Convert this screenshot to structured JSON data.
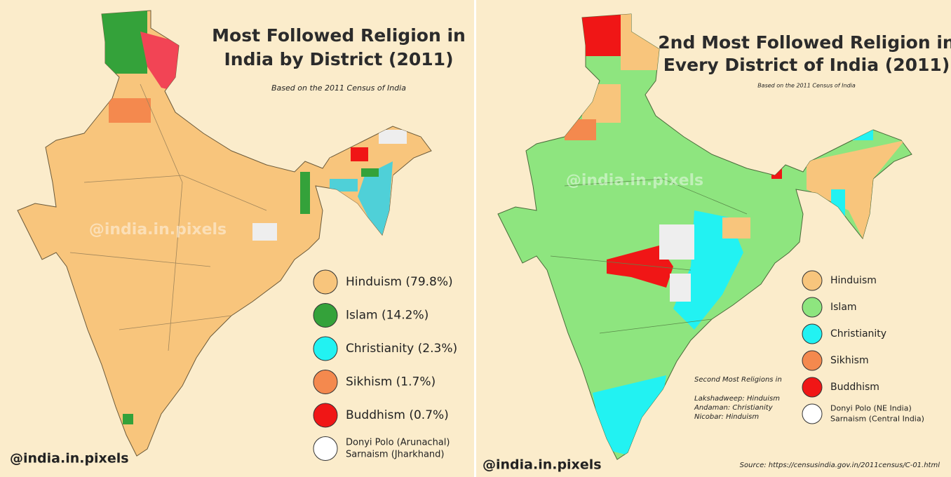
{
  "left_panel": {
    "title_lines": [
      "Most Followed Religion in",
      "India by District (2011)"
    ],
    "subtitle": "Based on the 2011 Census of India",
    "watermark": "@india.in.pixels",
    "credit": "@india.in.pixels",
    "legend": [
      {
        "lines": [
          "Hinduism (79.8%)"
        ],
        "color": "#f8c57c"
      },
      {
        "lines": [
          "Islam (14.2%)"
        ],
        "color": "#34a23a"
      },
      {
        "lines": [
          "Christianity (2.3%)"
        ],
        "color": "#22f2f2"
      },
      {
        "lines": [
          "Sikhism (1.7%)"
        ],
        "color": "#f4894e"
      },
      {
        "lines": [
          "Buddhism (0.7%)"
        ],
        "color": "#f01616"
      },
      {
        "lines": [
          "Donyi Polo (Arunachal)",
          "Sarnaism (Jharkhand)"
        ],
        "color": "#ffffff"
      }
    ]
  },
  "right_panel": {
    "title_lines": [
      "2nd Most Followed Religion in",
      "Every District of India (2011)"
    ],
    "subtitle": "Based on the 2011 Census of India",
    "watermark": "@india.in.pixels",
    "credit": "@india.in.pixels",
    "note_heading": "Second Most Religions in",
    "note_lines": [
      "Lakshadweep: Hinduism",
      "Andaman: Christianity",
      "Nicobar: Hinduism"
    ],
    "source": "Source: https://censusindia.gov.in/2011census/C-01.html",
    "legend": [
      {
        "lines": [
          "Hinduism"
        ],
        "color": "#f8c57c"
      },
      {
        "lines": [
          "Islam"
        ],
        "color": "#8ee57f"
      },
      {
        "lines": [
          "Christianity"
        ],
        "color": "#22f2f2"
      },
      {
        "lines": [
          "Sikhism"
        ],
        "color": "#f4894e"
      },
      {
        "lines": [
          "Buddhism"
        ],
        "color": "#f01616"
      },
      {
        "lines": [
          "Donyi Polo (NE India)",
          "Sarnaism (Central India)"
        ],
        "color": "#ffffff"
      }
    ]
  }
}
